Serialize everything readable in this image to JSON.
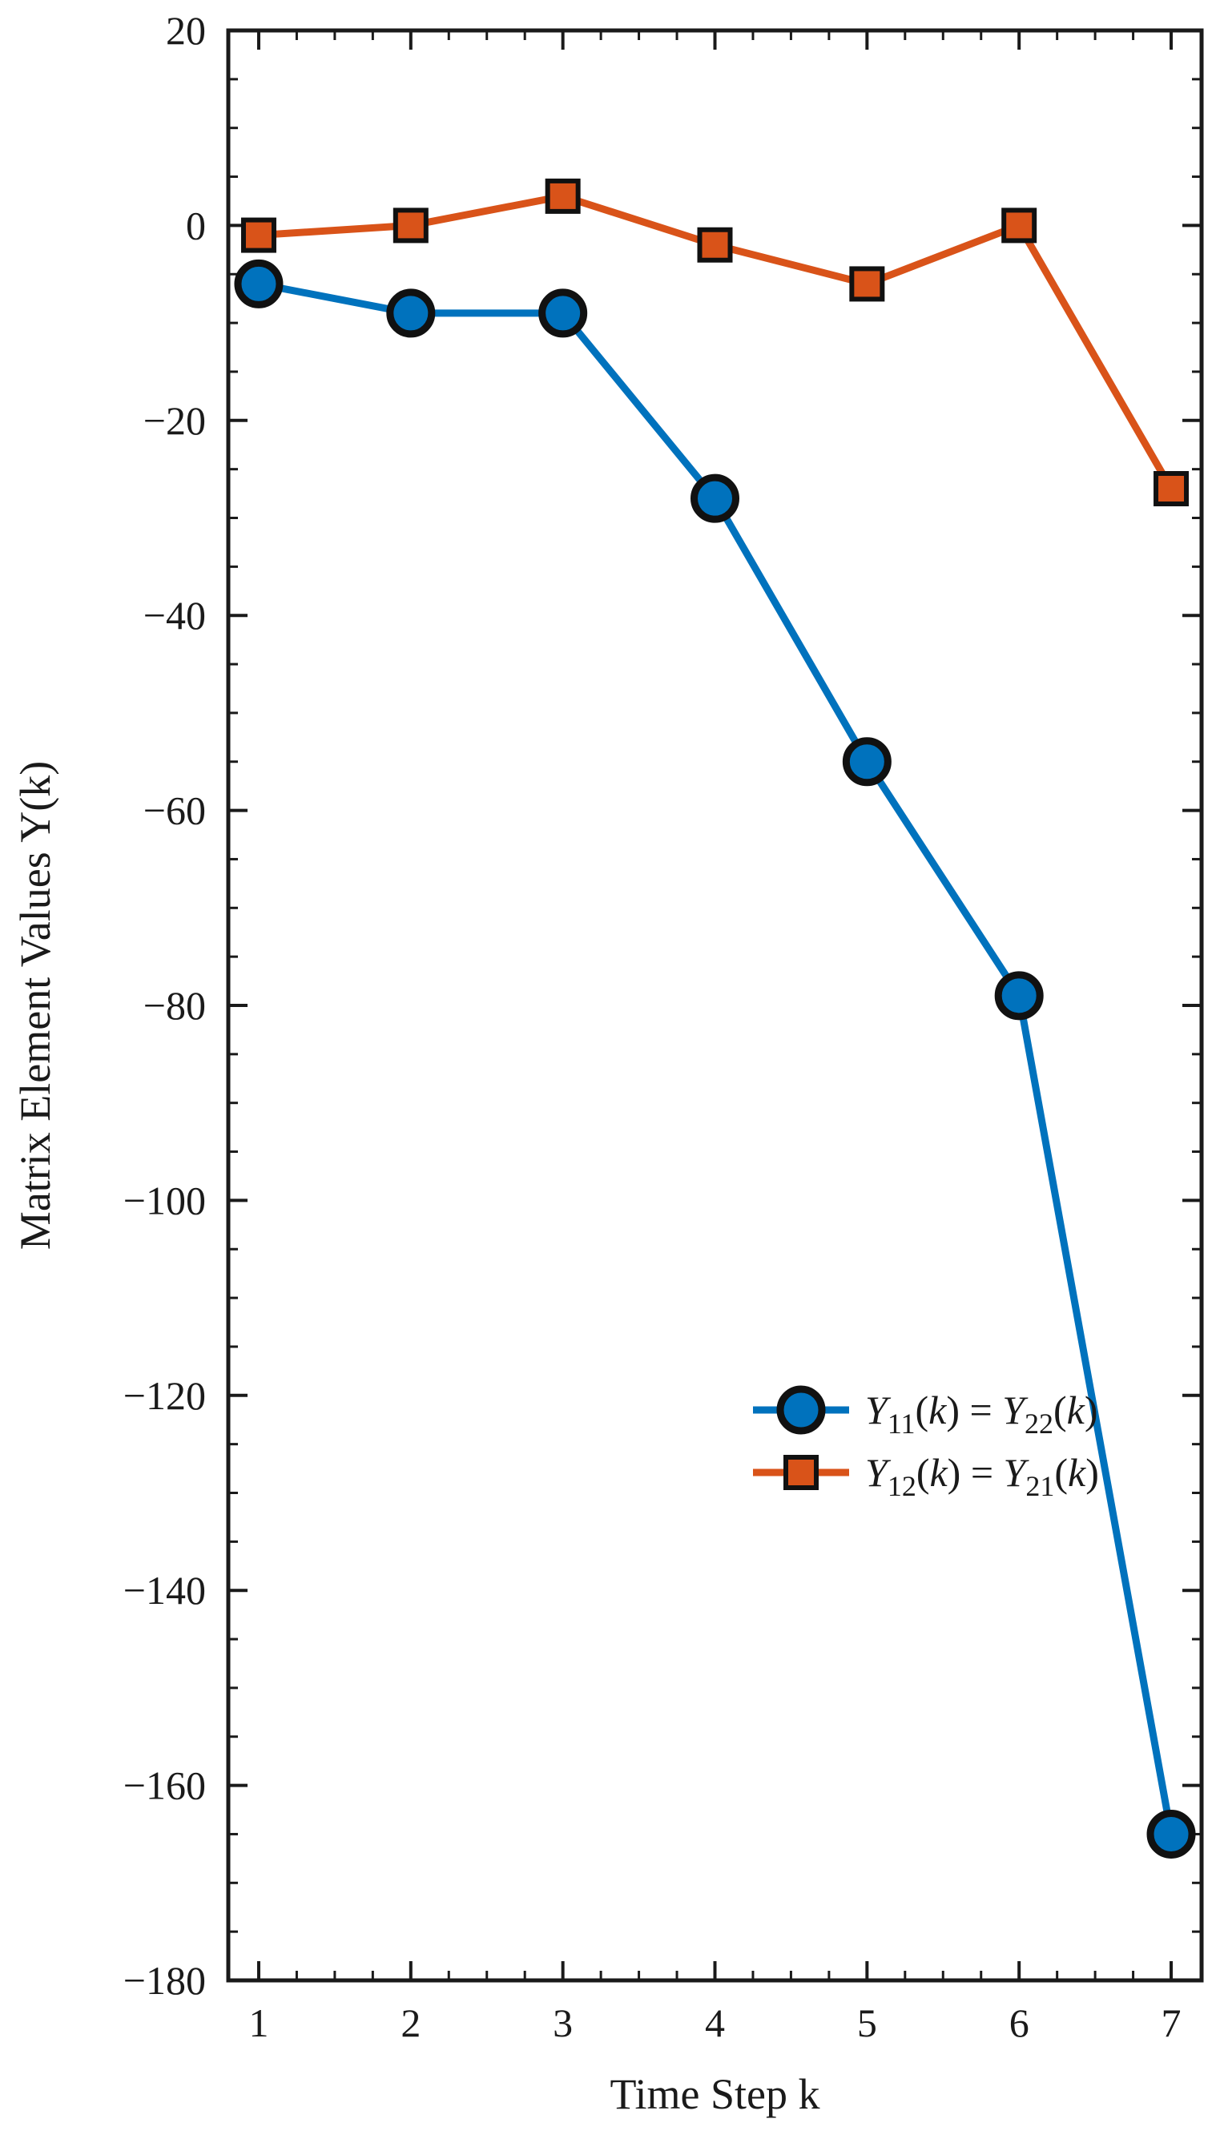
{
  "chart_data": {
    "type": "line",
    "xlabel": "Time Step k",
    "ylabel": "Matrix Element Values Y(k)",
    "xlim": [
      0.8,
      7.2
    ],
    "ylim": [
      -180,
      20
    ],
    "x_ticks": [
      1,
      2,
      3,
      4,
      5,
      6,
      7
    ],
    "y_ticks": [
      20,
      0,
      -20,
      -40,
      -60,
      -80,
      -100,
      -120,
      -140,
      -160,
      -180
    ],
    "x_tick_labels": [
      "1",
      "2",
      "3",
      "4",
      "5",
      "6",
      "7"
    ],
    "y_tick_labels": [
      "20",
      "0",
      "−20",
      "−40",
      "−60",
      "−80",
      "−100",
      "−120",
      "−140",
      "−160",
      "−180"
    ],
    "grid": false,
    "legend_position": "center-right",
    "x": [
      1,
      2,
      3,
      4,
      5,
      6,
      7
    ],
    "series": [
      {
        "name": "Y11(k) = Y22(k)",
        "marker": "circle",
        "color": "#0072BD",
        "values": [
          -6,
          -9,
          -9,
          -28,
          -55,
          -79,
          -165
        ]
      },
      {
        "name": "Y12(k) = Y21(k)",
        "marker": "square",
        "color": "#D95319",
        "values": [
          -1,
          0,
          3,
          -2,
          -6,
          0,
          -27
        ]
      }
    ]
  }
}
